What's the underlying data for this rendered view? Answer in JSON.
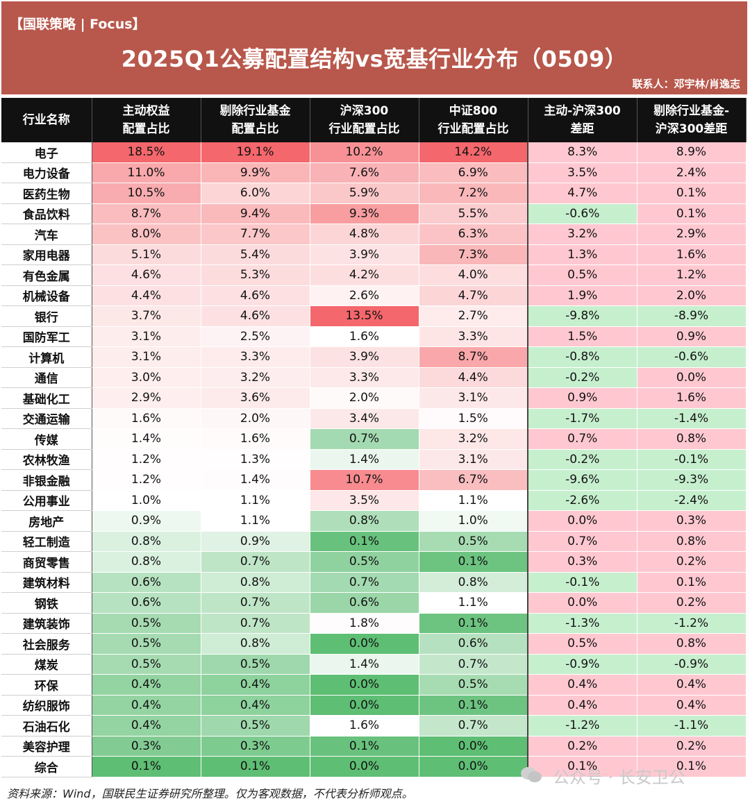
{
  "header": {
    "tag": "【国联策略 | Focus】",
    "title": "2025Q1公募配置结构vs宽基行业分布（0509）",
    "contact": "联系人：邓宇林/肖逸志"
  },
  "footer": {
    "source": "资料来源：Wind，国联民生证券研究所整理。仅为客观数据，不代表分析师观点。",
    "watermark": "公众号 · 长安卫公"
  },
  "colors": {
    "red_strong": "#f4676c",
    "green_strong": "#5ebe74",
    "pos_diff": "#ffc8d0",
    "neg_diff": "#c6efce"
  },
  "chart_data": {
    "type": "table",
    "title": "2025Q1公募配置结构vs宽基行业分布（0509）",
    "columns": [
      {
        "key": "name",
        "label1": "行业名称",
        "label2": ""
      },
      {
        "key": "active",
        "label1": "主动权益",
        "label2": "配置占比"
      },
      {
        "key": "ex_sector",
        "label1": "剔除行业基金",
        "label2": "配置占比"
      },
      {
        "key": "hs300",
        "label1": "沪深300",
        "label2": "行业配置占比"
      },
      {
        "key": "zz800",
        "label1": "中证800",
        "label2": "行业配置占比"
      },
      {
        "key": "diff1",
        "label1": "主动-沪深300",
        "label2": "差距"
      },
      {
        "key": "diff2",
        "label1": "剔除行业基金-",
        "label2": "沪深300差距"
      }
    ],
    "rows": [
      {
        "name": "电子",
        "values": [
          18.5,
          19.1,
          10.2,
          14.2,
          8.3,
          8.9
        ]
      },
      {
        "name": "电力设备",
        "values": [
          11.0,
          9.9,
          7.6,
          6.9,
          3.5,
          2.4
        ]
      },
      {
        "name": "医药生物",
        "values": [
          10.5,
          6.0,
          5.9,
          7.2,
          4.7,
          0.1
        ]
      },
      {
        "name": "食品饮料",
        "values": [
          8.7,
          9.4,
          9.3,
          5.5,
          -0.6,
          0.1
        ]
      },
      {
        "name": "汽车",
        "values": [
          8.0,
          7.7,
          4.8,
          6.3,
          3.2,
          2.9
        ]
      },
      {
        "name": "家用电器",
        "values": [
          5.1,
          5.4,
          3.9,
          7.3,
          1.3,
          1.6
        ]
      },
      {
        "name": "有色金属",
        "values": [
          4.6,
          5.3,
          4.2,
          4.0,
          0.5,
          1.2
        ]
      },
      {
        "name": "机械设备",
        "values": [
          4.4,
          4.6,
          2.6,
          4.7,
          1.9,
          2.0
        ]
      },
      {
        "name": "银行",
        "values": [
          3.7,
          4.6,
          13.5,
          2.7,
          -9.8,
          -8.9
        ]
      },
      {
        "name": "国防军工",
        "values": [
          3.1,
          2.5,
          1.6,
          3.3,
          1.5,
          0.9
        ]
      },
      {
        "name": "计算机",
        "values": [
          3.1,
          3.3,
          3.9,
          8.7,
          -0.8,
          -0.6
        ]
      },
      {
        "name": "通信",
        "values": [
          3.0,
          3.2,
          3.3,
          4.4,
          -0.2,
          0.0
        ]
      },
      {
        "name": "基础化工",
        "values": [
          2.9,
          3.6,
          2.0,
          3.1,
          0.9,
          1.6
        ]
      },
      {
        "name": "交通运输",
        "values": [
          1.6,
          2.0,
          3.4,
          1.5,
          -1.7,
          -1.4
        ]
      },
      {
        "name": "传媒",
        "values": [
          1.4,
          1.6,
          0.7,
          3.2,
          0.7,
          0.8
        ]
      },
      {
        "name": "农林牧渔",
        "values": [
          1.2,
          1.3,
          1.4,
          3.1,
          -0.2,
          -0.1
        ]
      },
      {
        "name": "非银金融",
        "values": [
          1.2,
          1.4,
          10.7,
          6.7,
          -9.6,
          -9.3
        ]
      },
      {
        "name": "公用事业",
        "values": [
          1.0,
          1.1,
          3.5,
          1.1,
          -2.6,
          -2.4
        ]
      },
      {
        "name": "房地产",
        "values": [
          0.9,
          1.1,
          0.8,
          1.0,
          0.0,
          0.3
        ]
      },
      {
        "name": "轻工制造",
        "values": [
          0.8,
          0.9,
          0.1,
          0.5,
          0.7,
          0.8
        ]
      },
      {
        "name": "商贸零售",
        "values": [
          0.8,
          0.7,
          0.5,
          0.1,
          0.3,
          0.2
        ]
      },
      {
        "name": "建筑材料",
        "values": [
          0.6,
          0.8,
          0.7,
          0.8,
          -0.1,
          0.1
        ]
      },
      {
        "name": "钢铁",
        "values": [
          0.6,
          0.7,
          0.6,
          1.1,
          0.0,
          0.2
        ]
      },
      {
        "name": "建筑装饰",
        "values": [
          0.5,
          0.7,
          1.8,
          0.1,
          -1.3,
          -1.2
        ]
      },
      {
        "name": "社会服务",
        "values": [
          0.5,
          0.8,
          0.0,
          0.6,
          0.5,
          0.8
        ]
      },
      {
        "name": "煤炭",
        "values": [
          0.5,
          0.5,
          1.4,
          0.7,
          -0.9,
          -0.9
        ]
      },
      {
        "name": "环保",
        "values": [
          0.4,
          0.4,
          0.0,
          0.5,
          0.4,
          0.4
        ]
      },
      {
        "name": "纺织服饰",
        "values": [
          0.4,
          0.4,
          0.0,
          0.1,
          0.4,
          0.4
        ]
      },
      {
        "name": "石油石化",
        "values": [
          0.4,
          0.5,
          1.6,
          0.7,
          -1.2,
          -1.1
        ]
      },
      {
        "name": "美容护理",
        "values": [
          0.3,
          0.3,
          0.1,
          0.0,
          0.2,
          0.2
        ]
      },
      {
        "name": "综合",
        "values": [
          0.1,
          0.1,
          0.0,
          0.0,
          0.1,
          0.1
        ]
      }
    ]
  }
}
